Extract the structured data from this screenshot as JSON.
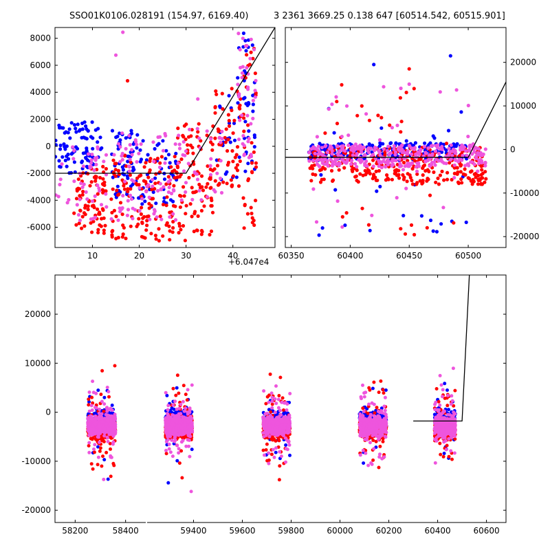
{
  "title_left": "SSO01K0106.028191 (154.97, 6169.40)",
  "title_right": "3 2361 3669.25 0.138 647 [60514.542, 60515.901]",
  "colors": {
    "blue": "#0000ff",
    "red": "#ff0000",
    "pink": "#ee55dd",
    "line": "#000000"
  },
  "chart_data": [
    {
      "type": "scatter",
      "panel": "top-left",
      "x_offset_label": "+6.047e4",
      "xlim": [
        2,
        49
      ],
      "ylim": [
        -7500,
        8800
      ],
      "xticks": [
        "10",
        "20",
        "30",
        "40"
      ],
      "xtick_values": [
        10,
        20,
        30,
        40
      ],
      "yticks": [
        "-6000",
        "-4000",
        "-2000",
        "0",
        "2000",
        "4000",
        "6000",
        "8000"
      ],
      "ytick_values": [
        -6000,
        -4000,
        -2000,
        0,
        2000,
        4000,
        6000,
        8000
      ],
      "yaxis_side": "left",
      "series": [
        {
          "color": "blue",
          "clusters": [
            {
              "x": [
                2,
                12
              ],
              "y": [
                -2000,
                1800
              ],
              "n": 90
            },
            {
              "x": [
                14,
                20
              ],
              "y": [
                -4000,
                1200
              ],
              "n": 60
            },
            {
              "x": [
                20,
                28
              ],
              "y": [
                -4500,
                500
              ],
              "n": 50
            },
            {
              "x": [
                36,
                45
              ],
              "y": [
                -2500,
                4000
              ],
              "n": 40
            },
            {
              "x": [
                41,
                45
              ],
              "y": [
                3000,
                8500
              ],
              "n": 20
            }
          ]
        },
        {
          "color": "red",
          "clusters": [
            {
              "x": [
                6,
                13
              ],
              "y": [
                -6500,
                -1500
              ],
              "n": 80
            },
            {
              "x": [
                14,
                28
              ],
              "y": [
                -7000,
                -500
              ],
              "n": 140
            },
            {
              "x": [
                28,
                36
              ],
              "y": [
                -7000,
                2000
              ],
              "n": 100
            },
            {
              "x": [
                36,
                42
              ],
              "y": [
                -3000,
                4500
              ],
              "n": 60
            },
            {
              "x": [
                42,
                45
              ],
              "y": [
                -6500,
                7500
              ],
              "n": 40
            }
          ]
        },
        {
          "color": "pink",
          "clusters": [
            {
              "x": [
                2,
                13
              ],
              "y": [
                -5500,
                500
              ],
              "n": 50
            },
            {
              "x": [
                14,
                28
              ],
              "y": [
                -5500,
                1000
              ],
              "n": 80
            },
            {
              "x": [
                28,
                38
              ],
              "y": [
                -4000,
                1500
              ],
              "n": 40
            },
            {
              "x": [
                41,
                45
              ],
              "y": [
                -1000,
                8500
              ],
              "n": 40
            }
          ]
        }
      ],
      "outliers": [
        {
          "color": "pink",
          "x": 16.5,
          "y": 8450
        },
        {
          "color": "pink",
          "x": 15,
          "y": 6750
        },
        {
          "color": "red",
          "x": 17.5,
          "y": 4850
        },
        {
          "color": "pink",
          "x": 32.5,
          "y": 3500
        }
      ],
      "model_line": [
        [
          2,
          -2000
        ],
        [
          30,
          -2000
        ],
        [
          49,
          8800
        ]
      ]
    },
    {
      "type": "scatter",
      "panel": "top-right",
      "xlim": [
        60345,
        60532
      ],
      "ylim": [
        -22500,
        28000
      ],
      "xticks": [
        "60350",
        "60400",
        "60450",
        "60500"
      ],
      "xtick_values": [
        60350,
        60400,
        60450,
        60500
      ],
      "yticks": [
        "-20000",
        "-10000",
        "0",
        "10000",
        "20000"
      ],
      "ytick_values": [
        -20000,
        -10000,
        0,
        10000,
        20000
      ],
      "yaxis_side": "right",
      "series": [
        {
          "color": "blue",
          "clusters": [
            {
              "x": [
                60365,
                60500
              ],
              "y": [
                -2500,
                1500
              ],
              "n": 230
            },
            {
              "x": [
                60365,
                60500
              ],
              "y": [
                -20000,
                10000
              ],
              "n": 30
            }
          ]
        },
        {
          "color": "red",
          "clusters": [
            {
              "x": [
                60365,
                60515
              ],
              "y": [
                -8000,
                500
              ],
              "n": 300
            },
            {
              "x": [
                60365,
                60515
              ],
              "y": [
                -20000,
                15000
              ],
              "n": 40
            }
          ]
        },
        {
          "color": "pink",
          "clusters": [
            {
              "x": [
                60365,
                60515
              ],
              "y": [
                -4000,
                1000
              ],
              "n": 320
            },
            {
              "x": [
                60365,
                60515
              ],
              "y": [
                -20000,
                15000
              ],
              "n": 40
            }
          ]
        }
      ],
      "outliers": [
        {
          "color": "blue",
          "x": 60420,
          "y": 19500
        },
        {
          "color": "blue",
          "x": 60485,
          "y": 21500
        },
        {
          "color": "red",
          "x": 60450,
          "y": 18500
        },
        {
          "color": "pink",
          "x": 60450,
          "y": 15000
        }
      ],
      "model_line": [
        [
          60345,
          -1800
        ],
        [
          60500,
          -1800
        ],
        [
          60532,
          15500
        ]
      ]
    },
    {
      "type": "scatter",
      "panel": "bottom",
      "xlim": [
        58120,
        60680
      ],
      "ylim": [
        -22500,
        28000
      ],
      "xticks": [
        "58200",
        "58400",
        "59400",
        "59600",
        "59800",
        "60000",
        "60200",
        "60400",
        "60600"
      ],
      "xtick_values": [
        58200,
        58400,
        59400,
        59600,
        59800,
        60000,
        60200,
        60400,
        60600
      ],
      "yticks": [
        "-20000",
        "-10000",
        "0",
        "10000",
        "20000"
      ],
      "ytick_values": [
        -20000,
        -10000,
        0,
        10000,
        20000
      ],
      "yaxis_side": "left",
      "clusters": [
        {
          "center": 58305,
          "width": 110
        },
        {
          "center": 59340,
          "width": 110
        },
        {
          "center": 59740,
          "width": 110
        },
        {
          "center": 60135,
          "width": 110
        },
        {
          "center": 60430,
          "width": 85
        }
      ],
      "model_line": [
        [
          60300,
          -1800
        ],
        [
          60500,
          -1800
        ],
        [
          60530,
          28000
        ]
      ]
    }
  ]
}
